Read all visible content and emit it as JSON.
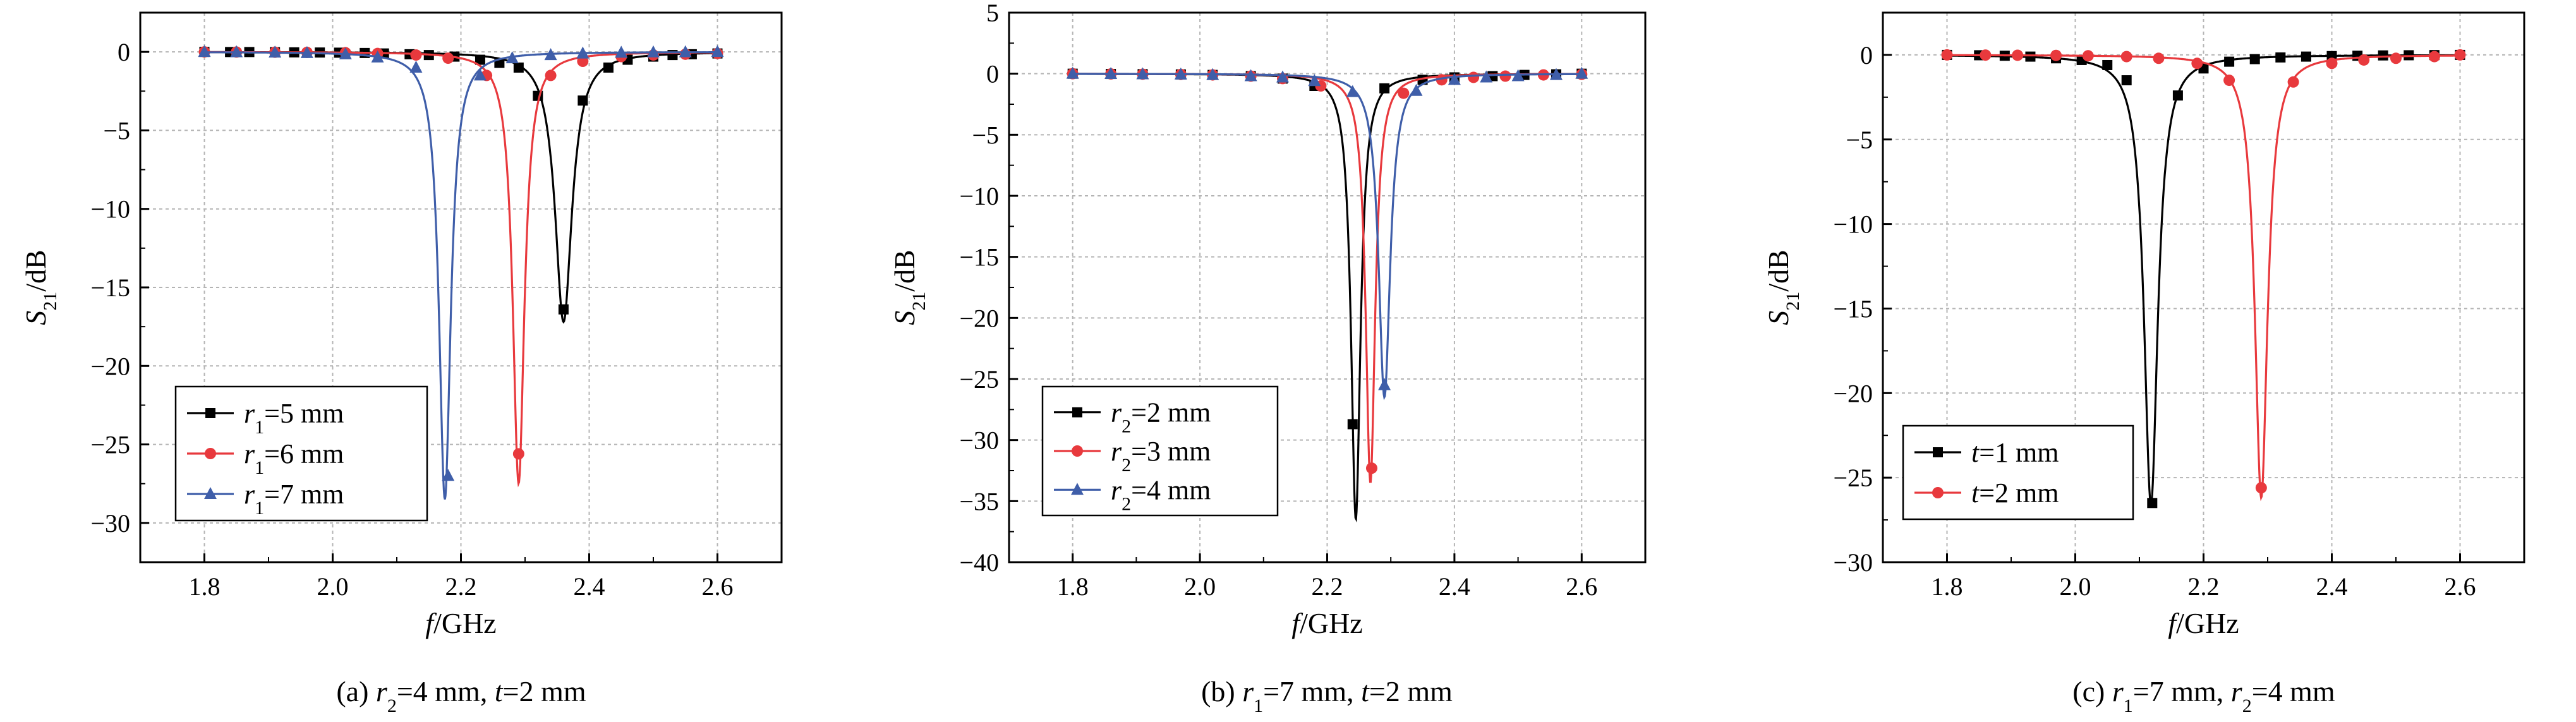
{
  "chart_data": [
    {
      "type": "line",
      "panel_caption": {
        "prefix": "(a)",
        "parts": [
          {
            "t": " "
          },
          {
            "t": "r",
            "i": true
          },
          {
            "t": "2",
            "sub": true
          },
          {
            "t": "=4 mm, "
          },
          {
            "t": "t",
            "i": true
          },
          {
            "t": "=2 mm"
          }
        ]
      },
      "xlabel_parts": [
        {
          "t": "f",
          "i": true
        },
        {
          "t": "/GHz"
        }
      ],
      "ylabel_parts": [
        {
          "t": "S",
          "i": true
        },
        {
          "t": "21",
          "sub": true
        },
        {
          "t": "/dB"
        }
      ],
      "xlim": [
        1.7,
        2.7
      ],
      "ylim": [
        -32.5,
        2.5
      ],
      "xticks": [
        1.8,
        2.0,
        2.2,
        2.4,
        2.6
      ],
      "xtick_labels": [
        "1.8",
        "2.0",
        "2.2",
        "2.4",
        "2.6"
      ],
      "yticks": [
        0,
        -5,
        -10,
        -15,
        -20,
        -25,
        -30
      ],
      "ytick_labels": [
        "0",
        "−5",
        "−10",
        "−15",
        "−20",
        "−25",
        "−30"
      ],
      "grid": true,
      "legend_position": "bottom-left",
      "series": [
        {
          "legend_parts": [
            {
              "t": "r",
              "i": true
            },
            {
              "t": "1",
              "sub": true
            },
            {
              "t": "=5 mm"
            }
          ],
          "color": "#000000",
          "marker": "square",
          "resonance": {
            "f0": 2.36,
            "depth": 17.2,
            "width": 0.016
          },
          "points": {
            "x": [
              1.8,
              1.84,
              1.87,
              1.91,
              1.94,
              1.98,
              2.01,
              2.05,
              2.08,
              2.12,
              2.15,
              2.19,
              2.23,
              2.26,
              2.29,
              2.32,
              2.36,
              2.39,
              2.43,
              2.46,
              2.5,
              2.53,
              2.56,
              2.6
            ],
            "y": [
              0,
              -0.01,
              -0.01,
              -0.02,
              -0.03,
              -0.04,
              -0.05,
              -0.07,
              -0.1,
              -0.15,
              -0.2,
              -0.3,
              -0.5,
              -0.7,
              -1.0,
              -2.8,
              -16.4,
              -3.1,
              -1.0,
              -0.5,
              -0.3,
              -0.2,
              -0.15,
              -0.1
            ]
          }
        },
        {
          "legend_parts": [
            {
              "t": "r",
              "i": true
            },
            {
              "t": "1",
              "sub": true
            },
            {
              "t": "=6 mm"
            }
          ],
          "color": "#e8393d",
          "marker": "circle",
          "resonance": {
            "f0": 2.29,
            "depth": 27.5,
            "width": 0.011
          },
          "points": {
            "x": [
              1.8,
              1.85,
              1.91,
              1.96,
              2.02,
              2.07,
              2.13,
              2.18,
              2.24,
              2.29,
              2.34,
              2.39,
              2.45,
              2.5,
              2.55,
              2.6
            ],
            "y": [
              0,
              -0.01,
              -0.02,
              -0.03,
              -0.05,
              -0.1,
              -0.2,
              -0.4,
              -1.5,
              -25.6,
              -1.5,
              -0.6,
              -0.3,
              -0.2,
              -0.15,
              -0.1
            ]
          }
        },
        {
          "legend_parts": [
            {
              "t": "r",
              "i": true
            },
            {
              "t": "1",
              "sub": true
            },
            {
              "t": "=7 mm"
            }
          ],
          "color": "#3f5ea9",
          "marker": "triangle",
          "resonance": {
            "f0": 2.175,
            "depth": 28.5,
            "width": 0.011
          },
          "points": {
            "x": [
              1.8,
              1.85,
              1.91,
              1.96,
              2.02,
              2.07,
              2.13,
              2.18,
              2.23,
              2.28,
              2.34,
              2.39,
              2.45,
              2.5,
              2.55,
              2.6
            ],
            "y": [
              0,
              -0.02,
              -0.04,
              -0.07,
              -0.15,
              -0.35,
              -1.0,
              -27.0,
              -1.5,
              -0.4,
              -0.2,
              -0.1,
              -0.05,
              -0.03,
              -0.02,
              0
            ]
          }
        }
      ]
    },
    {
      "type": "line",
      "panel_caption": {
        "prefix": "(b)",
        "parts": [
          {
            "t": " "
          },
          {
            "t": "r",
            "i": true
          },
          {
            "t": "1",
            "sub": true
          },
          {
            "t": "=7 mm, "
          },
          {
            "t": "t",
            "i": true
          },
          {
            "t": "=2 mm"
          }
        ]
      },
      "xlabel_parts": [
        {
          "t": "f",
          "i": true
        },
        {
          "t": "/GHz"
        }
      ],
      "ylabel_parts": [
        {
          "t": "S",
          "i": true
        },
        {
          "t": "21",
          "sub": true
        },
        {
          "t": "/dB"
        }
      ],
      "xlim": [
        1.7,
        2.7
      ],
      "ylim": [
        -40,
        5
      ],
      "xticks": [
        1.8,
        2.0,
        2.2,
        2.4,
        2.6
      ],
      "xtick_labels": [
        "1.8",
        "2.0",
        "2.2",
        "2.4",
        "2.6"
      ],
      "yticks": [
        5,
        0,
        -5,
        -10,
        -15,
        -20,
        -25,
        -30,
        -35,
        -40
      ],
      "ytick_labels": [
        "5",
        "0",
        "−5",
        "−10",
        "−15",
        "−20",
        "−25",
        "−30",
        "−35",
        "−40"
      ],
      "grid": true,
      "legend_position": "bottom-left",
      "series": [
        {
          "legend_parts": [
            {
              "t": "r",
              "i": true
            },
            {
              "t": "2",
              "sub": true
            },
            {
              "t": "=2 mm"
            }
          ],
          "color": "#000000",
          "marker": "square",
          "resonance": {
            "f0": 2.245,
            "depth": 36.5,
            "width": 0.009
          },
          "points": {
            "x": [
              1.8,
              1.86,
              1.91,
              1.97,
              2.02,
              2.08,
              2.13,
              2.18,
              2.24,
              2.29,
              2.35,
              2.4,
              2.46,
              2.51,
              2.56,
              2.6
            ],
            "y": [
              0,
              -0.02,
              -0.04,
              -0.06,
              -0.1,
              -0.2,
              -0.4,
              -1.0,
              -28.7,
              -1.2,
              -0.5,
              -0.3,
              -0.2,
              -0.1,
              -0.05,
              0
            ]
          }
        },
        {
          "legend_parts": [
            {
              "t": "r",
              "i": true
            },
            {
              "t": "2",
              "sub": true
            },
            {
              "t": "=3 mm"
            }
          ],
          "color": "#e8393d",
          "marker": "circle",
          "resonance": {
            "f0": 2.268,
            "depth": 33.5,
            "width": 0.009
          },
          "points": {
            "x": [
              1.8,
              1.86,
              1.91,
              1.97,
              2.02,
              2.08,
              2.13,
              2.19,
              2.27,
              2.32,
              2.38,
              2.43,
              2.48,
              2.54,
              2.6
            ],
            "y": [
              0,
              -0.02,
              -0.04,
              -0.06,
              -0.1,
              -0.2,
              -0.4,
              -1.0,
              -32.3,
              -1.6,
              -0.5,
              -0.3,
              -0.2,
              -0.1,
              -0.05
            ]
          }
        },
        {
          "legend_parts": [
            {
              "t": "r",
              "i": true
            },
            {
              "t": "2",
              "sub": true
            },
            {
              "t": "=4 mm"
            }
          ],
          "color": "#3f5ea9",
          "marker": "triangle",
          "resonance": {
            "f0": 2.29,
            "depth": 26.5,
            "width": 0.011
          },
          "points": {
            "x": [
              1.8,
              1.86,
              1.91,
              1.97,
              2.02,
              2.08,
              2.13,
              2.18,
              2.24,
              2.29,
              2.34,
              2.4,
              2.45,
              2.5,
              2.56,
              2.6
            ],
            "y": [
              0,
              -0.02,
              -0.04,
              -0.06,
              -0.1,
              -0.2,
              -0.3,
              -0.6,
              -1.5,
              -25.5,
              -1.4,
              -0.5,
              -0.3,
              -0.2,
              -0.1,
              0
            ]
          }
        }
      ]
    },
    {
      "type": "line",
      "panel_caption": {
        "prefix": "(c)",
        "parts": [
          {
            "t": " "
          },
          {
            "t": "r",
            "i": true
          },
          {
            "t": "1",
            "sub": true
          },
          {
            "t": "=7 mm, "
          },
          {
            "t": "r",
            "i": true
          },
          {
            "t": "2",
            "sub": true
          },
          {
            "t": "=4 mm"
          }
        ]
      },
      "xlabel_parts": [
        {
          "t": "f",
          "i": true
        },
        {
          "t": "/GHz"
        }
      ],
      "ylabel_parts": [
        {
          "t": "S",
          "i": true
        },
        {
          "t": "21",
          "sub": true
        },
        {
          "t": "/dB"
        }
      ],
      "xlim": [
        1.7,
        2.7
      ],
      "ylim": [
        -30,
        2.5
      ],
      "xticks": [
        1.8,
        2.0,
        2.2,
        2.4,
        2.6
      ],
      "xtick_labels": [
        "1.8",
        "2.0",
        "2.2",
        "2.4",
        "2.6"
      ],
      "yticks": [
        0,
        -5,
        -10,
        -15,
        -20,
        -25,
        -30
      ],
      "ytick_labels": [
        "0",
        "−5",
        "−10",
        "−15",
        "−20",
        "−25",
        "−30"
      ],
      "grid": true,
      "legend_position": "bottom-left",
      "series": [
        {
          "legend_parts": [
            {
              "t": "t",
              "i": true
            },
            {
              "t": "=1 mm"
            }
          ],
          "color": "#000000",
          "marker": "square",
          "resonance": {
            "f0": 2.118,
            "depth": 26.6,
            "width": 0.013
          },
          "points": {
            "x": [
              1.8,
              1.85,
              1.89,
              1.93,
              1.97,
              2.01,
              2.05,
              2.08,
              2.12,
              2.16,
              2.2,
              2.24,
              2.28,
              2.32,
              2.36,
              2.4,
              2.44,
              2.48,
              2.52,
              2.56,
              2.6
            ],
            "y": [
              0,
              -0.02,
              -0.05,
              -0.1,
              -0.2,
              -0.3,
              -0.6,
              -1.5,
              -26.5,
              -2.4,
              -0.8,
              -0.4,
              -0.25,
              -0.15,
              -0.1,
              -0.07,
              -0.05,
              -0.03,
              -0.02,
              -0.01,
              0
            ]
          }
        },
        {
          "legend_parts": [
            {
              "t": "t",
              "i": true
            },
            {
              "t": "=2 mm"
            }
          ],
          "color": "#e8393d",
          "marker": "circle",
          "resonance": {
            "f0": 2.29,
            "depth": 26.2,
            "width": 0.012
          },
          "points": {
            "x": [
              1.8,
              1.86,
              1.91,
              1.97,
              2.02,
              2.08,
              2.13,
              2.19,
              2.24,
              2.29,
              2.34,
              2.4,
              2.45,
              2.5,
              2.56,
              2.6
            ],
            "y": [
              0,
              -0.01,
              -0.02,
              -0.03,
              -0.05,
              -0.1,
              -0.2,
              -0.5,
              -1.5,
              -25.6,
              -1.6,
              -0.5,
              -0.3,
              -0.2,
              -0.1,
              0
            ]
          }
        }
      ]
    }
  ]
}
